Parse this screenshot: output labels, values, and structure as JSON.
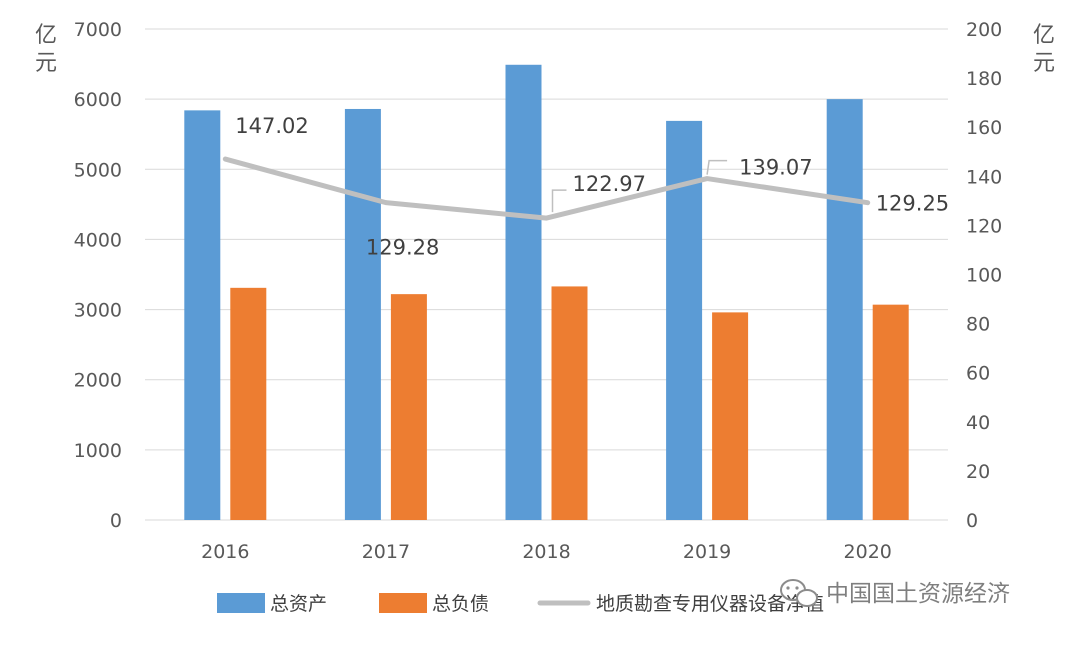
{
  "chart_data": {
    "type": "bar",
    "categories": [
      "2016",
      "2017",
      "2018",
      "2019",
      "2020"
    ],
    "series": [
      {
        "name": "总资产",
        "type": "bar",
        "axis": "left",
        "color": "#5B9BD5",
        "values": [
          5840,
          5860,
          6490,
          5690,
          6000
        ]
      },
      {
        "name": "总负债",
        "type": "bar",
        "axis": "left",
        "color": "#ED7D31",
        "values": [
          3310,
          3220,
          3330,
          2960,
          3070
        ]
      },
      {
        "name": "地质勘查专用仪器设备净值",
        "type": "line",
        "axis": "right",
        "color": "#BFBFBF",
        "values": [
          147.02,
          129.28,
          122.97,
          139.07,
          129.25
        ]
      }
    ],
    "data_labels": [
      "147.02",
      "129.28",
      "122.97",
      "139.07",
      "129.25"
    ],
    "y_left": {
      "unit": "亿元",
      "ylim": [
        0,
        7000
      ],
      "ticks": [
        "0",
        "1000",
        "2000",
        "3000",
        "4000",
        "5000",
        "6000",
        "7000"
      ]
    },
    "y_right": {
      "unit": "亿元",
      "ylim": [
        0,
        200
      ],
      "ticks": [
        "0",
        "20",
        "40",
        "60",
        "80",
        "100",
        "120",
        "140",
        "160",
        "180",
        "200"
      ]
    },
    "grid": true,
    "legend_position": "bottom"
  },
  "units": {
    "left": [
      "亿",
      "元"
    ],
    "right": [
      "亿",
      "元"
    ]
  },
  "watermark": {
    "text": "中国国土资源经济",
    "icon": "wechat-icon"
  }
}
